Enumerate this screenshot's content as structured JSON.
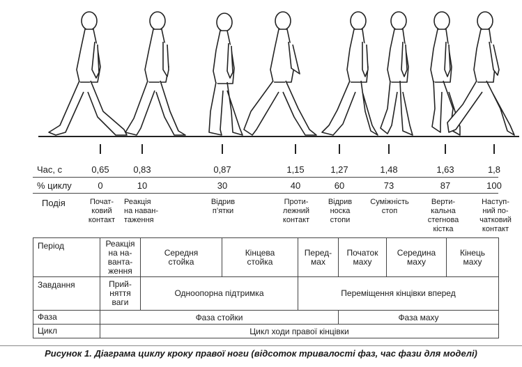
{
  "rows": {
    "time_label": "Час, с",
    "percent_label": "% циклу",
    "event_label": "Подія"
  },
  "columns": [
    {
      "time": "0,65",
      "percent": "0",
      "event": "Почат-\nковий\nконтакт"
    },
    {
      "time": "0,83",
      "percent": "10",
      "event": "Реакція\nна наван-\nтаження"
    },
    {
      "time": "0,87",
      "percent": "30",
      "event": "Відрив\nп’ятки"
    },
    {
      "time": "1,15",
      "percent": "40",
      "event": "Проти-\nлежний\nконтакт"
    },
    {
      "time": "1,27",
      "percent": "60",
      "event": "Відрив\nноска\nстопи"
    },
    {
      "time": "1,48",
      "percent": "73",
      "event": "Суміжність\nстоп"
    },
    {
      "time": "1,63",
      "percent": "87",
      "event": "Верти-\nкальна\nстегнова\nкістка"
    },
    {
      "time": "1,8",
      "percent": "100",
      "event": "Наступ-\nний по-\nчатковий\nконтакт"
    }
  ],
  "table": {
    "period_label": "Період",
    "periods": [
      "Реакція\nна на-\nванта-\nження",
      "Середня\nстойка",
      "Кінцева\nстойка",
      "Перед-\nмах",
      "Початок\nмаху",
      "Середина\nмаху",
      "Кінець\nмаху"
    ],
    "task_label": "Завдання",
    "tasks": [
      "Прий-\nняття\nваги",
      "Одноопорна підтримка",
      "Переміщення кінцівки вперед"
    ],
    "phase_label": "Фаза",
    "phases": [
      "Фаза стойки",
      "Фаза маху"
    ],
    "cycle_label": "Цикл",
    "cycle": "Цикл ходи правої кінцівки"
  },
  "caption": "Рисунок 1. Діаграма циклу кроку правої ноги (відсоток тривалості фаз, час фази для моделі)"
}
